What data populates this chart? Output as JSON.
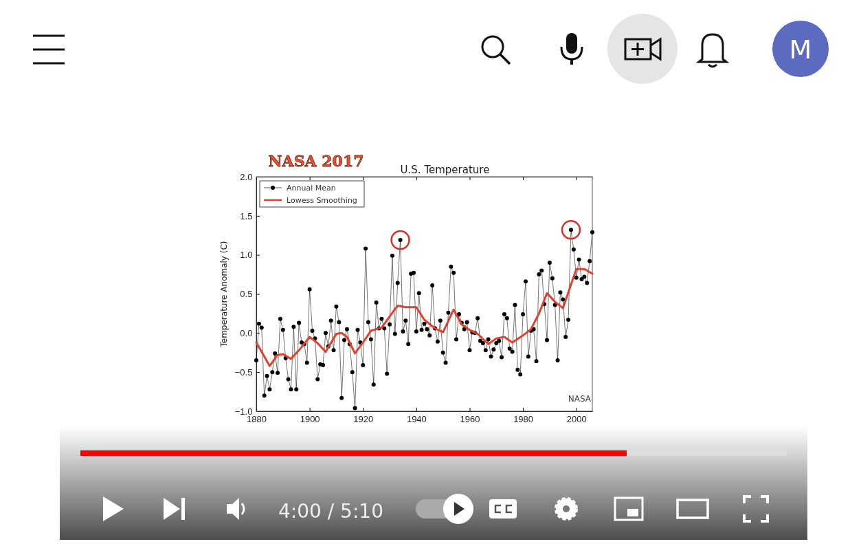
{
  "chart_data": {
    "type": "line",
    "title": "U.S. Temperature",
    "ylabel": "Temperature Anomaly (C)",
    "annotations": [
      "NASA 2017",
      "NASA",
      "M",
      "4:00 / 5:10"
    ],
    "xlim": [
      1880,
      2006
    ],
    "xticks": [
      1880,
      1900,
      1920,
      1940,
      1960,
      1980,
      2000
    ],
    "ylim": [
      -1.0,
      2.0
    ],
    "yticks": [
      {
        "value": -1,
        "label": "−1.0"
      },
      {
        "value": -0.5,
        "label": "−0.5"
      },
      {
        "value": 0,
        "label": "0.0"
      },
      {
        "value": 0.5,
        "label": "0.5"
      },
      {
        "value": 1,
        "label": "1.0"
      },
      {
        "value": 1.5,
        "label": "1.5"
      },
      {
        "value": 2,
        "label": "2.0"
      }
    ],
    "legend": "top left",
    "grid": false,
    "line_style": "solid",
    "series": [
      {
        "name": "Annual Mean",
        "color": "#000000",
        "marker": "circle",
        "x": [
          1880,
          1881,
          1882,
          1883,
          1884,
          1885,
          1886,
          1887,
          1888,
          1889,
          1890,
          1891,
          1892,
          1893,
          1894,
          1895,
          1896,
          1897,
          1898,
          1899,
          1900,
          1901,
          1902,
          1903,
          1904,
          1905,
          1906,
          1907,
          1908,
          1909,
          1910,
          1911,
          1912,
          1913,
          1914,
          1915,
          1916,
          1917,
          1918,
          1919,
          1920,
          1921,
          1922,
          1923,
          1924,
          1925,
          1926,
          1927,
          1928,
          1929,
          1930,
          1931,
          1932,
          1933,
          1934,
          1935,
          1936,
          1937,
          1938,
          1939,
          1940,
          1941,
          1942,
          1943,
          1944,
          1945,
          1946,
          1947,
          1948,
          1949,
          1950,
          1951,
          1952,
          1953,
          1954,
          1955,
          1956,
          1957,
          1958,
          1959,
          1960,
          1961,
          1962,
          1963,
          1964,
          1965,
          1966,
          1967,
          1968,
          1969,
          1970,
          1971,
          1972,
          1973,
          1974,
          1975,
          1976,
          1977,
          1978,
          1979,
          1980,
          1981,
          1982,
          1983,
          1984,
          1985,
          1986,
          1987,
          1988,
          1989,
          1990,
          1991,
          1992,
          1993,
          1994,
          1995,
          1996,
          1997,
          1998,
          1999,
          2000,
          2001,
          2002,
          2003,
          2004,
          2005,
          2006
        ],
        "values": [
          -0.35,
          0.12,
          0.07,
          -0.8,
          -0.55,
          -0.72,
          -0.5,
          -0.26,
          -0.51,
          0.18,
          0.04,
          -0.32,
          -0.59,
          -0.72,
          0.08,
          -0.72,
          0.13,
          -0.12,
          -0.14,
          -0.38,
          0.56,
          0.03,
          -0.07,
          -0.59,
          -0.4,
          -0.41,
          0.0,
          -0.17,
          0.16,
          -0.22,
          0.34,
          0.14,
          -0.83,
          -0.09,
          0.05,
          -0.14,
          -0.5,
          -0.96,
          0.04,
          -0.12,
          -0.41,
          1.08,
          0.14,
          -0.08,
          -0.66,
          0.39,
          0.06,
          0.18,
          0.06,
          -0.52,
          0.11,
          0.99,
          -0.01,
          0.64,
          1.19,
          0.02,
          0.16,
          -0.14,
          0.76,
          0.77,
          0.02,
          0.51,
          0.04,
          0.12,
          0.05,
          -0.03,
          0.61,
          0.06,
          -0.11,
          0.16,
          -0.25,
          -0.38,
          0.26,
          0.85,
          0.77,
          -0.08,
          0.24,
          0.13,
          0.05,
          0.14,
          -0.22,
          0.01,
          0.0,
          0.19,
          -0.1,
          -0.13,
          -0.22,
          -0.08,
          -0.3,
          -0.21,
          -0.13,
          -0.1,
          -0.31,
          0.24,
          0.19,
          -0.2,
          -0.24,
          0.36,
          -0.47,
          -0.53,
          0.24,
          0.66,
          -0.3,
          0.03,
          0.05,
          -0.36,
          0.75,
          0.8,
          0.37,
          -0.09,
          0.9,
          0.7,
          0.36,
          -0.35,
          0.52,
          0.43,
          -0.05,
          0.17,
          1.32,
          1.07,
          0.71,
          0.94,
          0.69,
          0.72,
          0.64,
          0.92,
          1.29
        ]
      },
      {
        "name": "Lowess Smoothing",
        "color": "#e0402f",
        "marker": "none",
        "x": [
          1880,
          1883,
          1885,
          1888,
          1890,
          1893,
          1896,
          1900,
          1903,
          1906,
          1910,
          1912,
          1914,
          1917,
          1920,
          1923,
          1927,
          1931,
          1933,
          1936,
          1940,
          1943,
          1947,
          1950,
          1954,
          1957,
          1960,
          1963,
          1967,
          1970,
          1973,
          1976,
          1980,
          1983,
          1986,
          1989,
          1992,
          1995,
          1998,
          2000,
          2003,
          2006
        ],
        "values": [
          -0.12,
          -0.3,
          -0.42,
          -0.28,
          -0.27,
          -0.33,
          -0.22,
          -0.05,
          -0.13,
          -0.24,
          -0.01,
          0.0,
          -0.05,
          -0.26,
          -0.12,
          0.03,
          0.07,
          0.26,
          0.35,
          0.33,
          0.33,
          0.17,
          0.06,
          0.01,
          0.3,
          0.11,
          0.04,
          -0.01,
          -0.14,
          -0.07,
          -0.05,
          -0.12,
          -0.03,
          0.05,
          0.25,
          0.51,
          0.4,
          0.32,
          0.62,
          0.82,
          0.82,
          0.76
        ]
      }
    ]
  }
}
